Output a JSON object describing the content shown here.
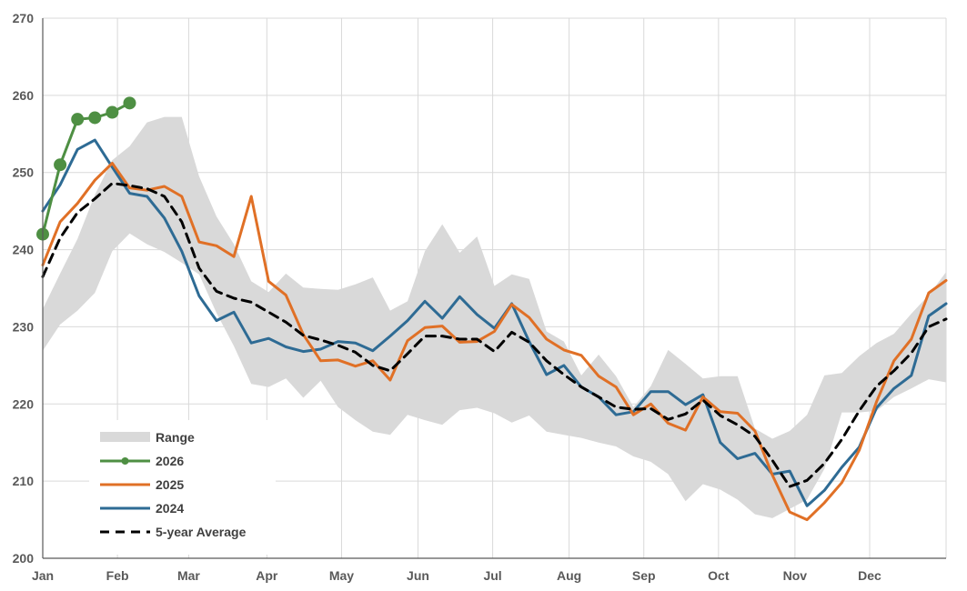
{
  "chart_data": {
    "type": "line",
    "title": "",
    "xlabel": "",
    "ylabel": "",
    "ylim": [
      200,
      270
    ],
    "y_ticks": [
      "200",
      "210",
      "220",
      "230",
      "240",
      "250",
      "260",
      "270"
    ],
    "x_ticks": [
      "Jan",
      "Feb",
      "Mar",
      "Apr",
      "May",
      "Jun",
      "Jul",
      "Aug",
      "Sep",
      "Oct",
      "Nov",
      "Dec"
    ],
    "grid": "vertical and horizontal",
    "legend_position": "bottom-left",
    "colors": {
      "range": "#d9d9d9",
      "2026": "#4e8f43",
      "2025": "#e07026",
      "2024": "#2e6b94",
      "avg": "#000000",
      "grid": "#d9d9d9",
      "axis": "#595959"
    },
    "legend": [
      {
        "key": "range",
        "label": "Range"
      },
      {
        "key": "2026",
        "label": "2026"
      },
      {
        "key": "2025",
        "label": "2025"
      },
      {
        "key": "2024",
        "label": "2024"
      },
      {
        "key": "avg",
        "label": "5-year Average"
      }
    ],
    "weeks_total": 53,
    "range_band": {
      "upper": [
        232.3,
        236.9,
        241.4,
        247.1,
        251.6,
        253.4,
        256.5,
        257.2,
        257.2,
        249.5,
        244.3,
        240.7,
        235.9,
        234.5,
        236.9,
        235.1,
        234.9,
        234.8,
        235.5,
        236.4,
        232.1,
        233.3,
        239.8,
        243.3,
        239.6,
        241.7,
        235.3,
        236.8,
        236.2,
        229.4,
        228.1,
        223.7,
        226.4,
        223.6,
        219.6,
        222.3,
        227.0,
        225.2,
        223.3,
        223.6,
        223.6,
        216.8,
        215.5,
        216.5,
        218.6,
        223.7,
        224.0,
        226.2,
        227.9,
        229.1,
        231.7,
        234.1,
        237.1
      ],
      "lower": [
        226.9,
        230.3,
        232.1,
        234.4,
        239.8,
        242.1,
        240.7,
        239.7,
        238.3,
        236.8,
        231.8,
        227.5,
        222.6,
        222.2,
        223.3,
        220.8,
        223.0,
        219.6,
        217.9,
        216.4,
        216.0,
        218.6,
        217.9,
        217.3,
        219.2,
        219.5,
        218.8,
        217.6,
        218.5,
        216.4,
        216.0,
        215.6,
        215.0,
        214.5,
        213.2,
        212.5,
        210.9,
        207.4,
        209.6,
        208.9,
        207.6,
        205.7,
        205.2,
        206.4,
        207.6,
        211.6,
        218.9,
        218.9,
        219.1,
        220.9,
        222.0,
        223.2,
        222.8
      ]
    },
    "series": [
      {
        "name": "2026",
        "x": [
          0,
          1,
          2,
          3,
          4,
          5
        ],
        "values": [
          242.0,
          251.0,
          256.9,
          257.1,
          257.8,
          259.0
        ]
      },
      {
        "name": "2025",
        "x": [
          0,
          1,
          2,
          3,
          4,
          5,
          6,
          7,
          8,
          9,
          10,
          11,
          12,
          13,
          14,
          15,
          16,
          17,
          18,
          19,
          20,
          21,
          22,
          23,
          24,
          25,
          26,
          27,
          28,
          29,
          30,
          31,
          32,
          33,
          34,
          35,
          36,
          37,
          38,
          39,
          40,
          41,
          42,
          43,
          44,
          45,
          46,
          47,
          48,
          49,
          50,
          51,
          52
        ],
        "values": [
          238.0,
          243.6,
          246.0,
          249.0,
          251.2,
          248.0,
          247.7,
          248.2,
          246.9,
          241.0,
          240.5,
          239.1,
          246.9,
          235.9,
          234.1,
          229.0,
          225.6,
          225.7,
          224.9,
          225.6,
          223.1,
          228.2,
          229.9,
          230.1,
          228.0,
          228.1,
          229.4,
          232.9,
          231.2,
          228.4,
          227.0,
          226.3,
          223.6,
          222.2,
          218.6,
          220.0,
          217.5,
          216.6,
          220.9,
          219.0,
          218.8,
          216.5,
          210.8,
          206.0,
          205.0,
          207.2,
          209.8,
          214.0,
          220.3,
          225.6,
          228.4,
          234.4,
          236.0
        ]
      },
      {
        "name": "2024",
        "x": [
          0,
          1,
          2,
          3,
          4,
          5,
          6,
          7,
          8,
          9,
          10,
          11,
          12,
          13,
          14,
          15,
          16,
          17,
          18,
          19,
          20,
          21,
          22,
          23,
          24,
          25,
          26,
          27,
          28,
          29,
          30,
          31,
          32,
          33,
          34,
          35,
          36,
          37,
          38,
          39,
          40,
          41,
          42,
          43,
          44,
          45,
          46,
          47,
          48,
          49,
          50,
          51,
          52
        ],
        "values": [
          245.0,
          248.4,
          253.0,
          254.2,
          250.7,
          247.3,
          246.9,
          244.1,
          239.8,
          234.0,
          230.8,
          231.9,
          227.9,
          228.5,
          227.4,
          226.8,
          227.1,
          228.1,
          227.9,
          226.9,
          228.8,
          230.8,
          233.3,
          231.1,
          233.9,
          231.6,
          229.8,
          233.0,
          228.1,
          223.8,
          225.0,
          222.2,
          220.9,
          218.6,
          219.0,
          221.6,
          221.6,
          219.9,
          221.2,
          215.0,
          212.9,
          213.6,
          210.9,
          211.3,
          206.8,
          208.8,
          211.8,
          214.4,
          219.5,
          222.0,
          223.7,
          231.4,
          233.0
        ]
      },
      {
        "name": "5-year Average",
        "x": [
          0,
          1,
          2,
          3,
          4,
          5,
          6,
          7,
          8,
          9,
          10,
          11,
          12,
          13,
          14,
          15,
          16,
          17,
          18,
          19,
          20,
          21,
          22,
          23,
          24,
          25,
          26,
          27,
          28,
          29,
          30,
          31,
          32,
          33,
          34,
          35,
          36,
          37,
          38,
          39,
          40,
          41,
          42,
          43,
          44,
          45,
          46,
          47,
          48,
          49,
          50,
          51,
          52
        ],
        "values": [
          236.5,
          241.5,
          244.8,
          246.6,
          248.6,
          248.3,
          247.9,
          246.9,
          243.6,
          237.6,
          234.6,
          233.7,
          233.2,
          231.9,
          230.6,
          228.9,
          228.3,
          227.6,
          226.7,
          225.0,
          224.3,
          226.5,
          228.8,
          228.8,
          228.4,
          228.4,
          226.8,
          229.3,
          228.0,
          225.6,
          223.8,
          222.2,
          220.9,
          219.6,
          219.3,
          219.4,
          218.0,
          218.7,
          220.5,
          218.5,
          217.3,
          215.8,
          212.7,
          209.3,
          210.1,
          212.3,
          215.4,
          219.1,
          222.3,
          224.3,
          226.6,
          230.0,
          231.0
        ]
      }
    ]
  }
}
